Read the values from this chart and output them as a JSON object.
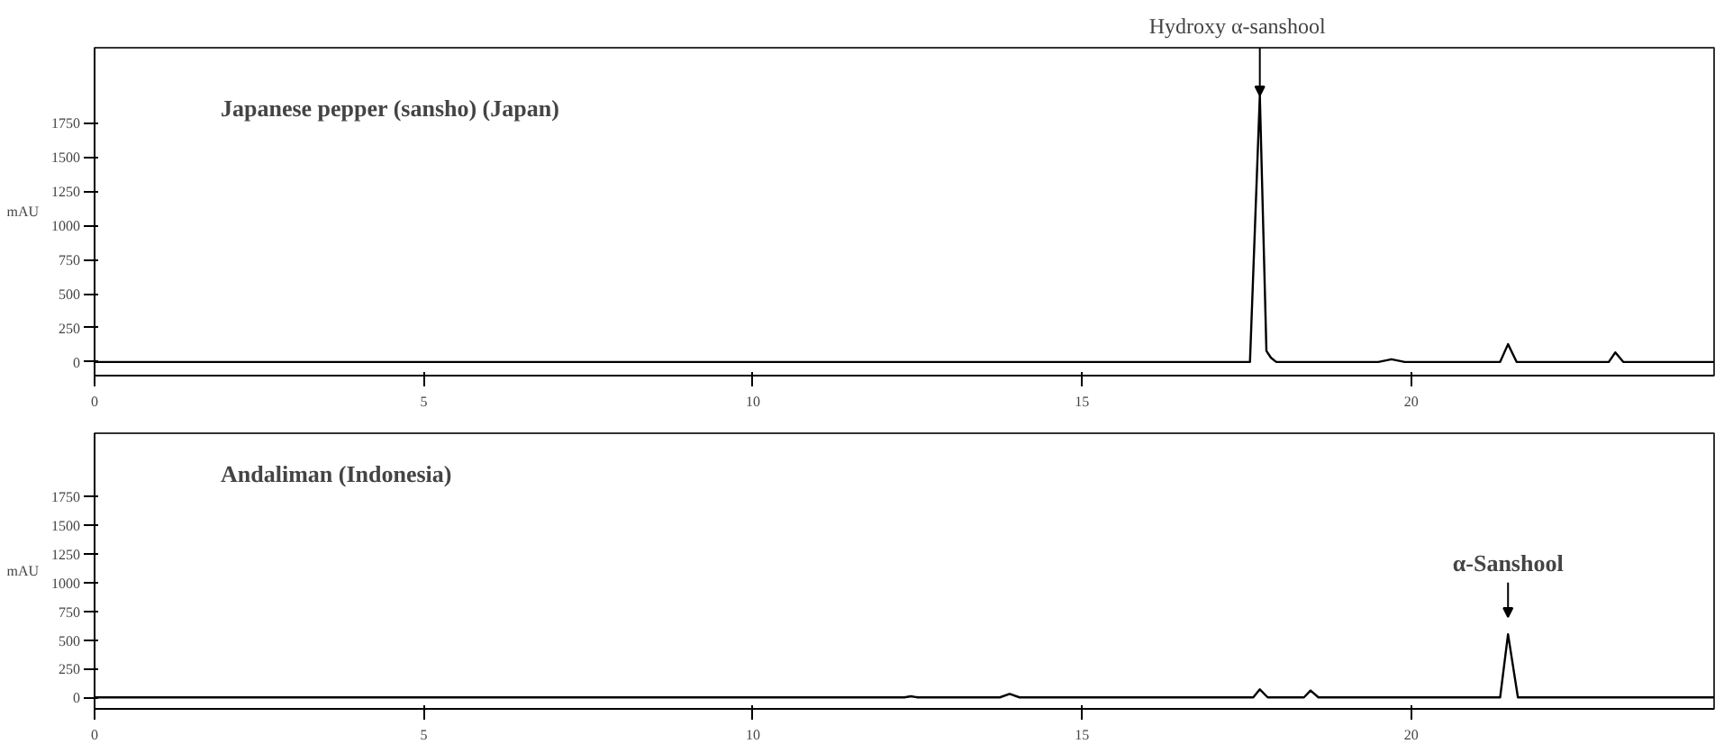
{
  "chart_data": [
    {
      "type": "line",
      "ylabel": "mAU",
      "xlim": [
        0,
        24.6
      ],
      "xticks": [
        0,
        5,
        10,
        15,
        20
      ],
      "ylim": [
        -100,
        2300
      ],
      "yticks": [
        0,
        250,
        500,
        750,
        1000,
        1250,
        1500,
        1750
      ],
      "annotations": [
        "Japanese pepper (sansho)  (Japan)",
        {
          "text": "Hydroxy α-sanshool",
          "x": 17.7,
          "y": 1950
        }
      ],
      "series": [
        {
          "color": "#000000",
          "x": [
            0,
            5,
            10,
            12.4,
            13.9,
            15,
            17.55,
            17.7,
            17.8,
            17.87,
            17.95,
            19.5,
            19.7,
            19.9,
            21.35,
            21.47,
            21.6,
            23.0,
            23.1,
            23.22,
            24.6
          ],
          "values": [
            0,
            0,
            0,
            0,
            0,
            0,
            0,
            1950,
            80,
            30,
            0,
            0,
            20,
            0,
            0,
            130,
            0,
            0,
            70,
            0,
            0
          ]
        }
      ]
    },
    {
      "type": "line",
      "ylabel": "mAU",
      "xlim": [
        0,
        24.6
      ],
      "xticks": [
        0,
        5,
        10,
        15,
        20
      ],
      "ylim": [
        -100,
        2300
      ],
      "yticks": [
        0,
        250,
        500,
        750,
        1000,
        1250,
        1500,
        1750
      ],
      "annotations": [
        "Andaliman (Indonesia)",
        {
          "text": "α-Sanshool",
          "x": 21.47,
          "y": 550
        }
      ],
      "series": [
        {
          "color": "#000000",
          "x": [
            0,
            5,
            10,
            12.3,
            12.4,
            12.5,
            13.75,
            13.9,
            14.05,
            15,
            17.6,
            17.7,
            17.82,
            18.37,
            18.47,
            18.59,
            21.35,
            21.47,
            21.62,
            24.6
          ],
          "values": [
            0,
            0,
            0,
            0,
            10,
            0,
            0,
            30,
            0,
            0,
            0,
            70,
            0,
            0,
            60,
            0,
            0,
            550,
            0,
            0
          ]
        }
      ]
    }
  ]
}
